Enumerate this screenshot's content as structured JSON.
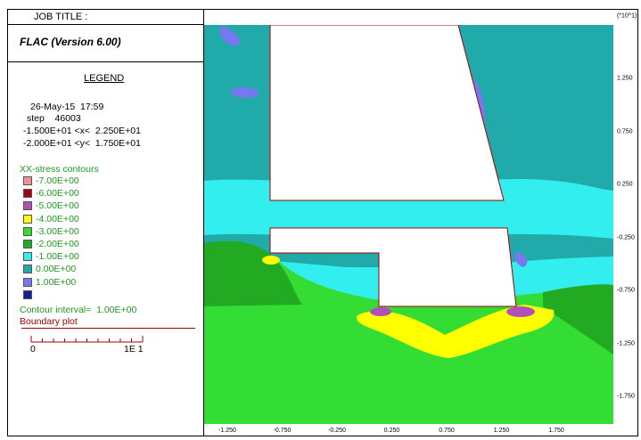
{
  "header": {
    "job_title": "JOB TITLE :",
    "app_name": "FLAC (Version 6.00)"
  },
  "legend": {
    "title": "LEGEND",
    "date": "26-May-15  17:59",
    "step": "step    46003",
    "x_range": "-1.500E+01 <x<  2.250E+01",
    "y_range": "-2.000E+01 <y<  1.750E+01",
    "contours_title": "XX-stress contours",
    "contour_levels": [
      {
        "label": "-7.00E+00",
        "color": "#f09090"
      },
      {
        "label": "-6.00E+00",
        "color": "#a00018"
      },
      {
        "label": "-5.00E+00",
        "color": "#b050b8"
      },
      {
        "label": "-4.00E+00",
        "color": "#ffff00"
      },
      {
        "label": "-3.00E+00",
        "color": "#33dd33"
      },
      {
        "label": "-2.00E+00",
        "color": "#22aa22"
      },
      {
        "label": "-1.00E+00",
        "color": "#33eeee"
      },
      {
        "label": "0.00E+00",
        "color": "#20aaaa"
      },
      {
        "label": "1.00E+00",
        "color": "#7777ee"
      },
      {
        "label": "",
        "color": "#1a1a99"
      }
    ],
    "contour_interval": "Contour interval=  1.00E+00",
    "boundary_plot": "Boundary plot",
    "scale_left": "0",
    "scale_right": "1E  1"
  },
  "axes": {
    "y_multiplier": "(*10^1)",
    "x_ticks": [
      "-1.250",
      "-0.750",
      "-0.250",
      "0.250",
      "0.750",
      "1.250",
      "1.750"
    ],
    "y_ticks": [
      "1.250",
      "0.750",
      "0.250",
      "-0.250",
      "-0.750",
      "-1.250",
      "-1.750"
    ]
  },
  "colors": {
    "teal": "#20aaaa",
    "cyan": "#33eeee",
    "green_dark": "#22aa22",
    "green_light": "#33dd33",
    "yellow": "#ffff00",
    "purple": "#b050b8",
    "blue": "#7777ee",
    "boundary": "#a00000"
  }
}
